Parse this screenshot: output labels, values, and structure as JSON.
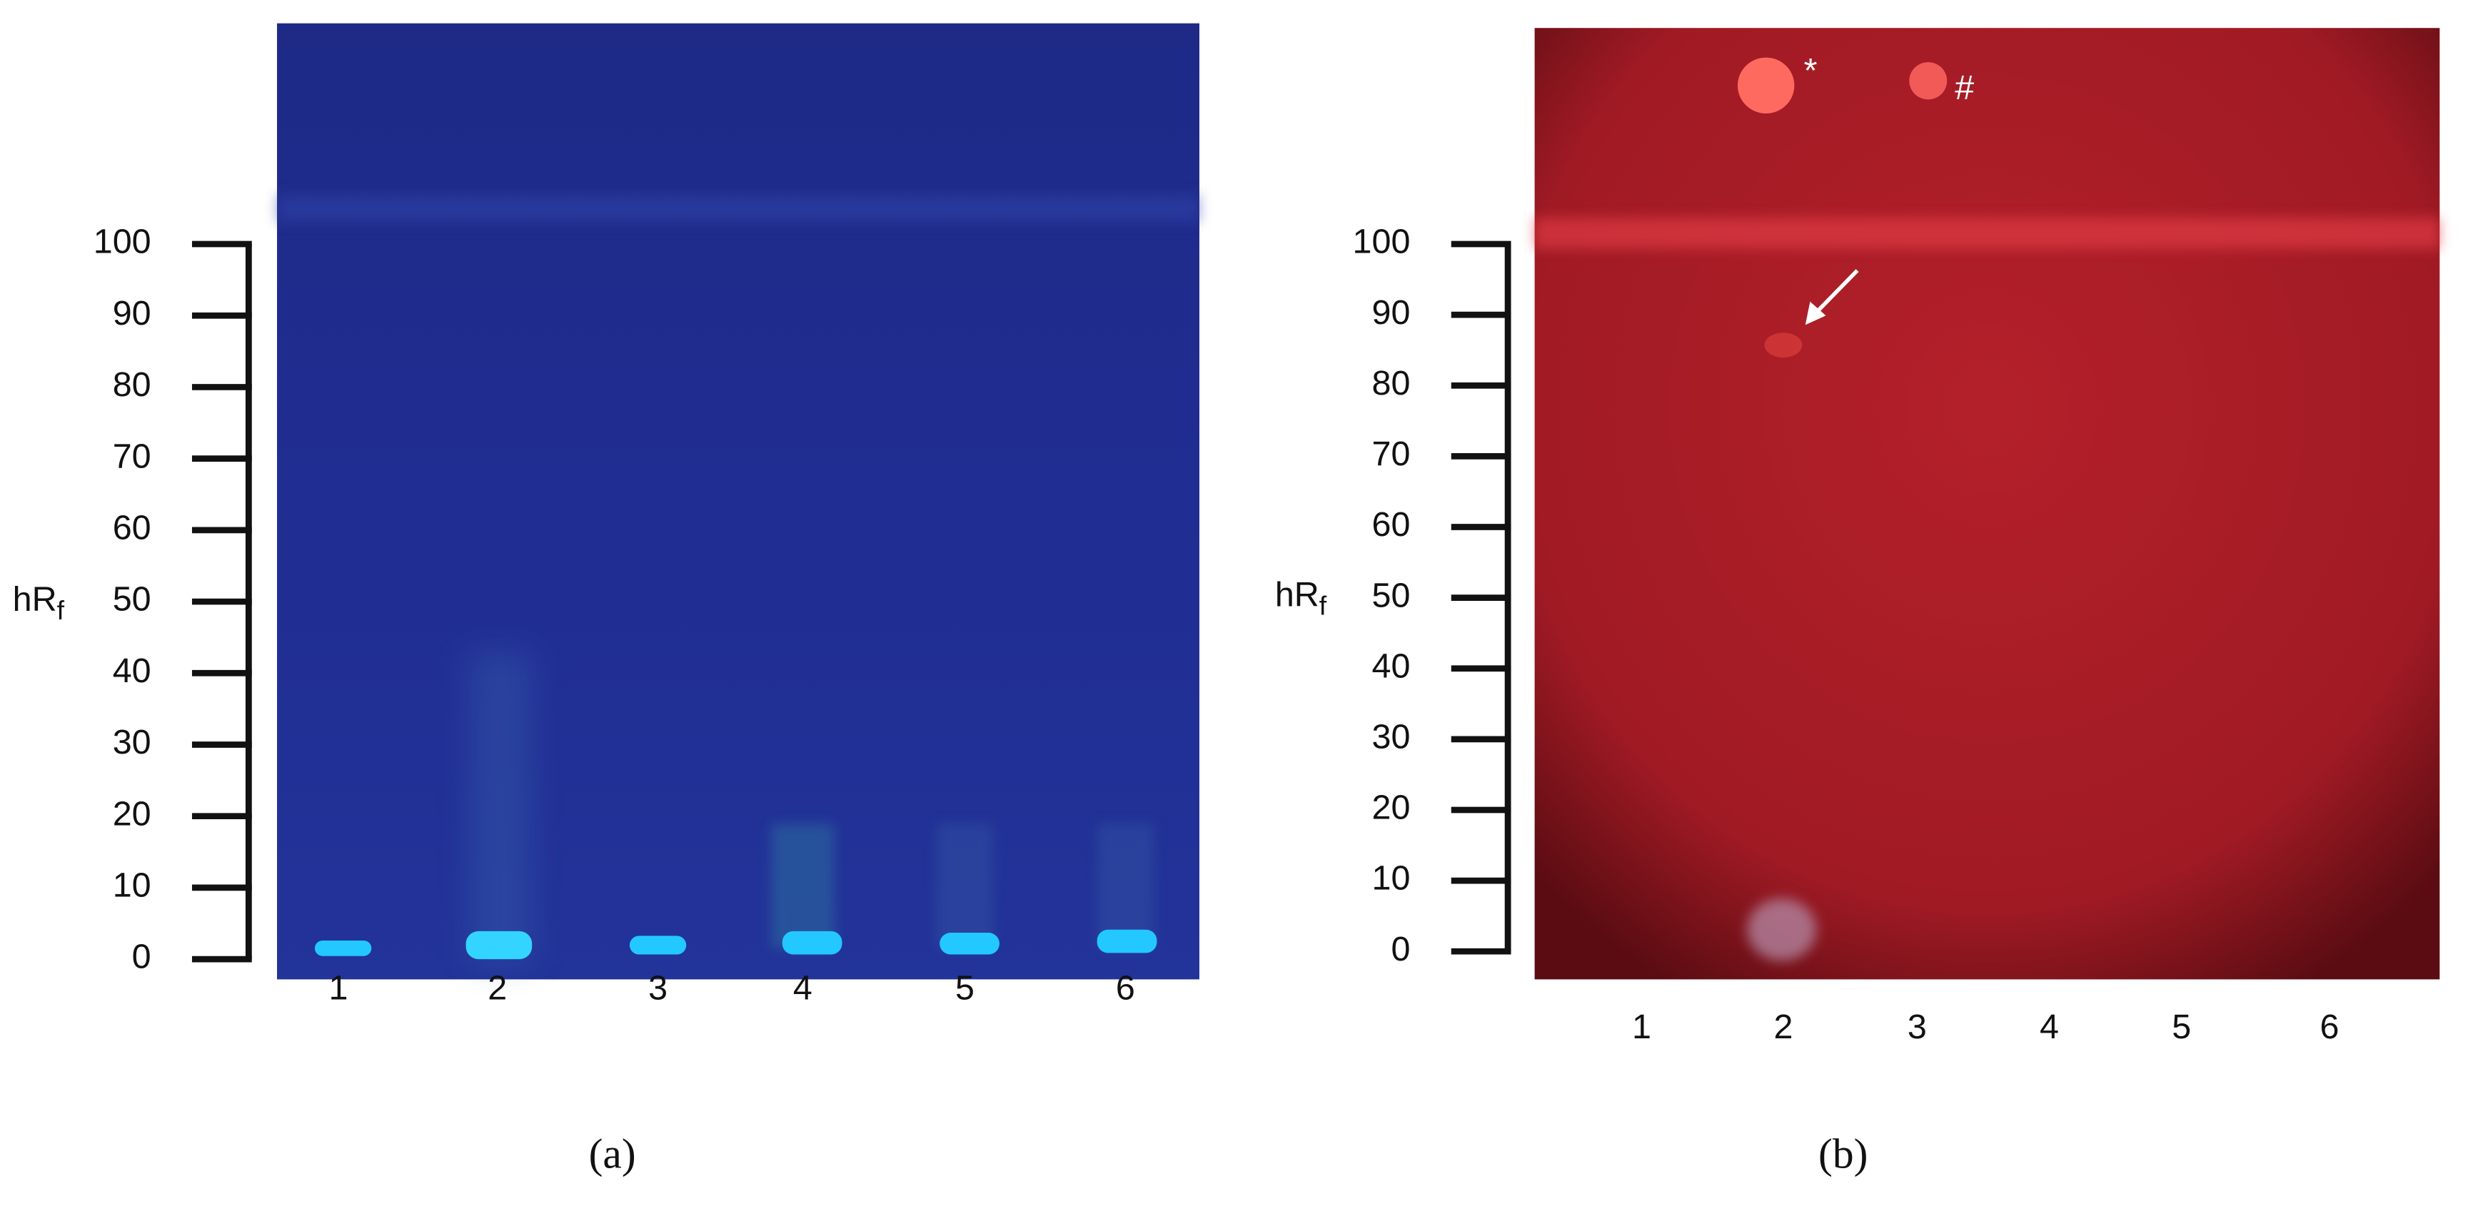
{
  "panels": [
    {
      "label": "(a)",
      "axis_label": "hR",
      "axis_label_sub": "f",
      "yticks": [
        0,
        10,
        20,
        30,
        40,
        50,
        60,
        70,
        80,
        90,
        100
      ],
      "lanes": [
        "1",
        "2",
        "3",
        "4",
        "5",
        "6"
      ]
    },
    {
      "label": "(b)",
      "axis_label": "hR",
      "axis_label_sub": "f",
      "yticks": [
        0,
        10,
        20,
        30,
        40,
        50,
        60,
        70,
        80,
        90,
        100
      ],
      "lanes": [
        "1",
        "2",
        "3",
        "4",
        "5",
        "6"
      ],
      "annotations": [
        "*",
        "#"
      ]
    }
  ]
}
